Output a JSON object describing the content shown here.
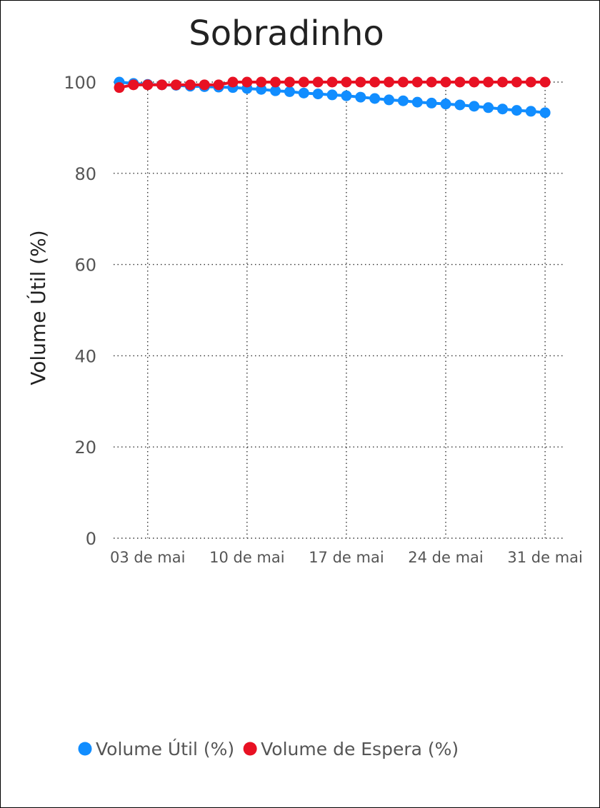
{
  "chart_data": {
    "type": "scatter",
    "title": "Sobradinho",
    "xlabel": "",
    "ylabel": "Volume Útil (%)",
    "ylim": [
      0,
      100
    ],
    "yticks": [
      "0",
      "20",
      "40",
      "60",
      "80",
      "100"
    ],
    "xticks": [
      {
        "label": "03 de mai",
        "day": 3
      },
      {
        "label": "10 de mai",
        "day": 10
      },
      {
        "label": "17 de mai",
        "day": 17
      },
      {
        "label": "24 de mai",
        "day": 24
      },
      {
        "label": "31 de mai",
        "day": 31
      }
    ],
    "x_unit": "day of May",
    "x_range": [
      1,
      32
    ],
    "grid": true,
    "legend_position": "bottom",
    "series": [
      {
        "name": "Volume Útil (%)",
        "color": "#118DFF",
        "x": [
          1,
          2,
          3,
          4,
          5,
          6,
          7,
          8,
          9,
          10,
          11,
          12,
          13,
          14,
          15,
          16,
          17,
          18,
          19,
          20,
          21,
          22,
          23,
          24,
          25,
          26,
          27,
          28,
          29,
          30,
          31
        ],
        "values": [
          100.0,
          99.7,
          99.5,
          99.4,
          99.3,
          99.1,
          99.0,
          98.9,
          98.8,
          98.6,
          98.4,
          98.1,
          97.9,
          97.6,
          97.4,
          97.2,
          97.0,
          96.7,
          96.4,
          96.1,
          95.9,
          95.6,
          95.4,
          95.2,
          95.0,
          94.7,
          94.4,
          94.1,
          93.8,
          93.6,
          93.3
        ]
      },
      {
        "name": "Volume de Espera (%)",
        "color": "#E81123",
        "x": [
          1,
          2,
          3,
          4,
          5,
          6,
          7,
          8,
          9,
          10,
          11,
          12,
          13,
          14,
          15,
          16,
          17,
          18,
          19,
          20,
          21,
          22,
          23,
          24,
          25,
          26,
          27,
          28,
          29,
          30,
          31
        ],
        "values": [
          98.8,
          99.4,
          99.4,
          99.4,
          99.4,
          99.4,
          99.4,
          99.4,
          100,
          100,
          100,
          100,
          100,
          100,
          100,
          100,
          100,
          100,
          100,
          100,
          100,
          100,
          100,
          100,
          100,
          100,
          100,
          100,
          100,
          100,
          100
        ]
      }
    ]
  }
}
